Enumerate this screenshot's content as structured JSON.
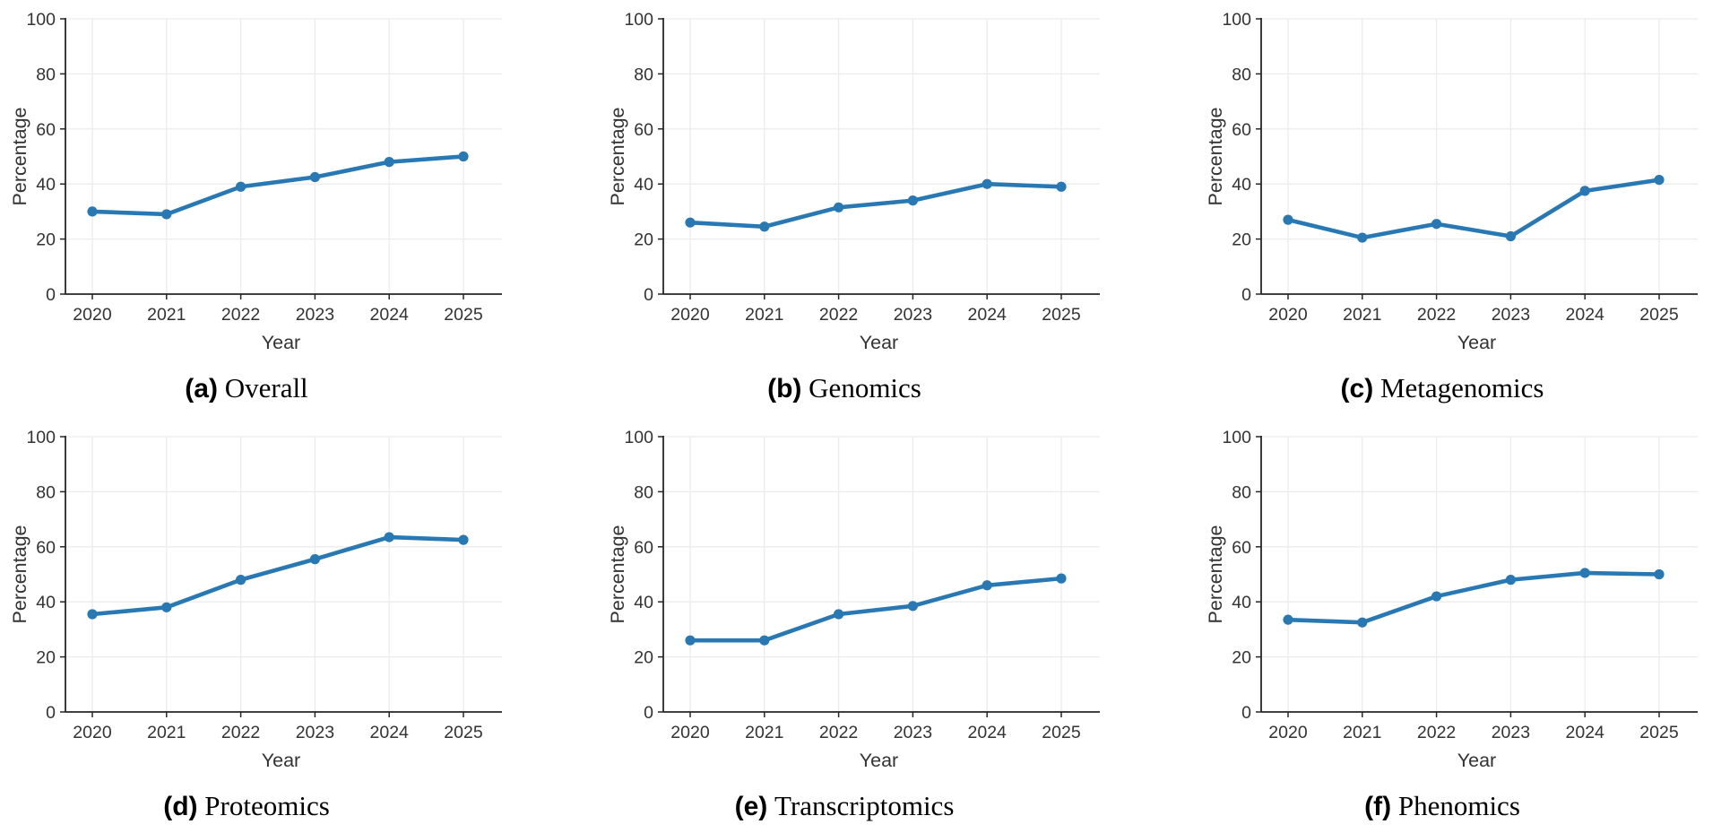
{
  "figure": {
    "line_color": "#2878b4",
    "marker_color": "#2878b4",
    "grid_color": "#ececec",
    "spine_color": "#262626",
    "tick_label_color": "#333333",
    "axis_label_color": "#333333",
    "background_color": "#ffffff"
  },
  "chart_data": [
    {
      "type": "line",
      "caption_letter": "(a)",
      "caption_label": "Overall",
      "xlabel": "Year",
      "ylabel": "Percentage",
      "x": [
        2020,
        2021,
        2022,
        2023,
        2024,
        2025
      ],
      "values": [
        30,
        29,
        39,
        42.5,
        48,
        50
      ],
      "ylim": [
        0,
        100
      ],
      "yticks": [
        0,
        20,
        40,
        60,
        80,
        100
      ],
      "grid": true,
      "legend": "none"
    },
    {
      "type": "line",
      "caption_letter": "(b)",
      "caption_label": "Genomics",
      "xlabel": "Year",
      "ylabel": "Percentage",
      "x": [
        2020,
        2021,
        2022,
        2023,
        2024,
        2025
      ],
      "values": [
        26,
        24.5,
        31.5,
        34,
        40,
        39
      ],
      "ylim": [
        0,
        100
      ],
      "yticks": [
        0,
        20,
        40,
        60,
        80,
        100
      ],
      "grid": true,
      "legend": "none"
    },
    {
      "type": "line",
      "caption_letter": "(c)",
      "caption_label": "Metagenomics",
      "xlabel": "Year",
      "ylabel": "Percentage",
      "x": [
        2020,
        2021,
        2022,
        2023,
        2024,
        2025
      ],
      "values": [
        27,
        20.5,
        25.5,
        21,
        37.5,
        41.5
      ],
      "ylim": [
        0,
        100
      ],
      "yticks": [
        0,
        20,
        40,
        60,
        80,
        100
      ],
      "grid": true,
      "legend": "none"
    },
    {
      "type": "line",
      "caption_letter": "(d)",
      "caption_label": "Proteomics",
      "xlabel": "Year",
      "ylabel": "Percentage",
      "x": [
        2020,
        2021,
        2022,
        2023,
        2024,
        2025
      ],
      "values": [
        35.5,
        38,
        48,
        55.5,
        63.5,
        62.5
      ],
      "ylim": [
        0,
        100
      ],
      "yticks": [
        0,
        20,
        40,
        60,
        80,
        100
      ],
      "grid": true,
      "legend": "none"
    },
    {
      "type": "line",
      "caption_letter": "(e)",
      "caption_label": "Transcriptomics",
      "xlabel": "Year",
      "ylabel": "Percentage",
      "x": [
        2020,
        2021,
        2022,
        2023,
        2024,
        2025
      ],
      "values": [
        26,
        26,
        35.5,
        38.5,
        46,
        48.5
      ],
      "ylim": [
        0,
        100
      ],
      "yticks": [
        0,
        20,
        40,
        60,
        80,
        100
      ],
      "grid": true,
      "legend": "none"
    },
    {
      "type": "line",
      "caption_letter": "(f)",
      "caption_label": "Phenomics",
      "xlabel": "Year",
      "ylabel": "Percentage",
      "x": [
        2020,
        2021,
        2022,
        2023,
        2024,
        2025
      ],
      "values": [
        33.5,
        32.5,
        42,
        48,
        50.5,
        50
      ],
      "ylim": [
        0,
        100
      ],
      "yticks": [
        0,
        20,
        40,
        60,
        80,
        100
      ],
      "grid": true,
      "legend": "none"
    }
  ]
}
